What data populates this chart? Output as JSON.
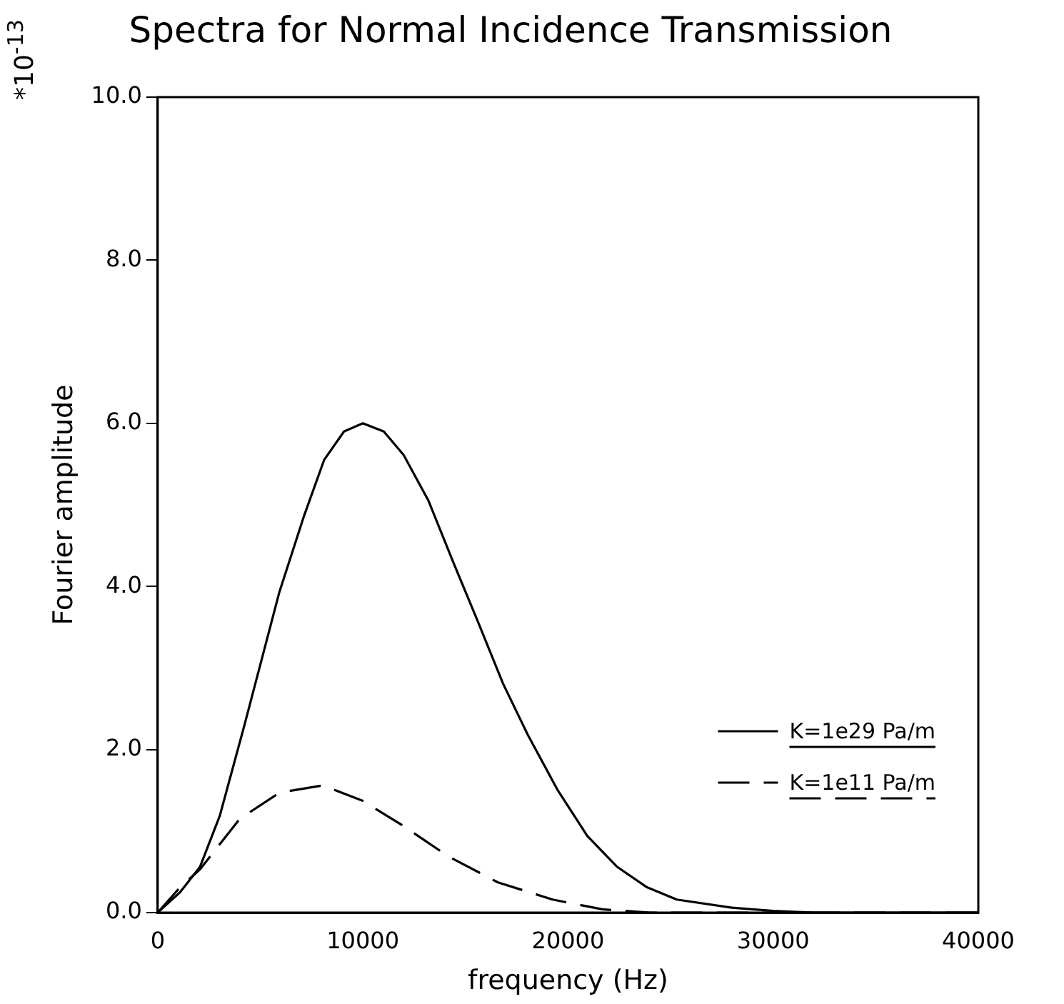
{
  "chart_data": {
    "type": "line",
    "title": "Spectra for Normal Incidence Transmission",
    "xlabel": "frequency (Hz)",
    "ylabel": "Fourier amplitude",
    "annotations": [
      "*10$^{-13}$"
    ],
    "xlim": [
      0,
      40000
    ],
    "xticks": [
      0,
      10000,
      20000,
      30000,
      40000
    ],
    "ylim": [
      0,
      10
    ],
    "yticks": [
      {
        "value": 0,
        "label": "0.0"
      },
      {
        "value": 2,
        "label": "2.0"
      },
      {
        "value": 4,
        "label": "4.0"
      },
      {
        "value": 6,
        "label": "6.0"
      },
      {
        "value": 8,
        "label": "8.0"
      },
      {
        "value": 10,
        "label": "10.0"
      }
    ],
    "grid": false,
    "legend": "bottom right",
    "marker": "none",
    "series": [
      {
        "name": "K=1e29 Pa/m",
        "color": "#000000",
        "line_style": "solid",
        "x": [
          0,
          1090,
          2060,
          3030,
          4240,
          5930,
          7140,
          8110,
          9080,
          10000,
          11020,
          11990,
          13200,
          14400,
          15620,
          16830,
          18040,
          19500,
          20940,
          22400,
          23850,
          25300,
          28000,
          30000,
          32000,
          40000
        ],
        "values": [
          0,
          0.25,
          0.56,
          1.19,
          2.31,
          3.93,
          4.87,
          5.55,
          5.9,
          6.0,
          5.9,
          5.61,
          5.05,
          4.3,
          3.56,
          2.81,
          2.18,
          1.5,
          0.94,
          0.56,
          0.31,
          0.16,
          0.06,
          0.02,
          0,
          0
        ]
      },
      {
        "name": "K=1e11 Pa/m",
        "color": "#000000",
        "line_style": "dashed",
        "x": [
          0,
          1090,
          2060,
          4000,
          5930,
          8060,
          10000,
          11990,
          14160,
          16590,
          19250,
          21670,
          24000,
          40000
        ],
        "values": [
          0,
          0.31,
          0.53,
          1.15,
          1.47,
          1.56,
          1.37,
          1.06,
          0.69,
          0.37,
          0.16,
          0.04,
          0,
          0
        ]
      }
    ]
  }
}
